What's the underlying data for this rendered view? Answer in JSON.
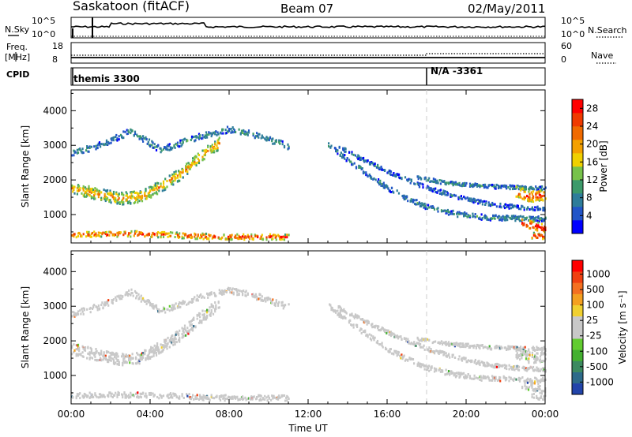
{
  "header": {
    "station": "Saskatoon (fitACF)",
    "beam": "Beam 07",
    "date": "02/May/2011"
  },
  "top_panels": {
    "nsky_label": "N.Sky",
    "nsky_ticks": [
      "10^5",
      "10^0"
    ],
    "nsearch_label": "N.Search",
    "nsearch_ticks": [
      "10^5",
      "10^0"
    ],
    "freq_label": "Freq.",
    "freq_unit": "[MHz]",
    "freq_ticks": [
      "18",
      "8"
    ],
    "nave_label": "Nave",
    "nave_ticks": [
      "60",
      "0"
    ],
    "cpid_label": "CPID",
    "cpid_segments": [
      {
        "label": "themis 3300",
        "start_hour": 0,
        "end_hour": 18
      },
      {
        "label": "N/A -3361",
        "start_hour": 18,
        "end_hour": 24
      }
    ]
  },
  "chart_data": [
    {
      "type": "heatmap",
      "name": "power",
      "x_range_hours": [
        0,
        24
      ],
      "x_ticks": [
        "00:00",
        "04:00",
        "08:00",
        "12:00",
        "16:00",
        "20:00",
        "00:00"
      ],
      "xlabel": "Time UT",
      "ylabel": "Slant Range [km]",
      "y_ticks": [
        1000,
        2000,
        3000,
        4000
      ],
      "ylim": [
        180,
        4600
      ],
      "colorbar_label": "Power [dB]",
      "colorbar_ticks": [
        "4",
        "8",
        "12",
        "16",
        "20",
        "24",
        "28"
      ],
      "colorbar_range": [
        0,
        30
      ],
      "colorbar_colors": [
        "#0000ff",
        "#2255c8",
        "#2e7d9a",
        "#3c9a6a",
        "#77c24a",
        "#f0d000",
        "#f4a000",
        "#f06a00",
        "#f03a00",
        "#ff0000"
      ],
      "echo_bands": [
        {
          "t": [
            0,
            1.5,
            3,
            4.5,
            6.5,
            8,
            9.5,
            11
          ],
          "range": [
            2750,
            3000,
            3400,
            2850,
            3250,
            3450,
            3250,
            2950
          ],
          "width": 90,
          "value": 8
        },
        {
          "t": [
            0,
            1.5,
            2.5,
            3.5,
            4.5,
            5.5,
            6.5,
            7.5
          ],
          "range": [
            1750,
            1550,
            1450,
            1500,
            1800,
            2150,
            2650,
            3050
          ],
          "width": 170,
          "value": 18
        },
        {
          "t": [
            0,
            1.5,
            3,
            4.5,
            6.5,
            8,
            10,
            11
          ],
          "range": [
            400,
            420,
            430,
            410,
            360,
            340,
            340,
            330
          ],
          "width": 80,
          "value": 24
        },
        {
          "t": [
            13,
            14,
            15,
            16,
            17,
            18,
            19.5,
            21,
            22.5,
            24
          ],
          "range": [
            3000,
            2550,
            2150,
            1750,
            1450,
            1200,
            1000,
            900,
            880,
            850
          ],
          "width": 75,
          "value": 8
        },
        {
          "t": [
            13.5,
            15,
            16.5,
            18,
            19.5,
            21,
            22.5,
            24
          ],
          "range": [
            2950,
            2500,
            2100,
            1750,
            1500,
            1300,
            1200,
            1150
          ],
          "width": 60,
          "value": 6
        },
        {
          "t": [
            17.5,
            19,
            20,
            21,
            22,
            23,
            24
          ],
          "range": [
            2050,
            1900,
            1850,
            1800,
            1780,
            1760,
            1750
          ],
          "width": 55,
          "value": 8
        },
        {
          "t": [
            22.5,
            23.2,
            24
          ],
          "range": [
            1650,
            1500,
            1550
          ],
          "width": 160,
          "value": 24
        },
        {
          "t": [
            22.8,
            23.5,
            24
          ],
          "range": [
            750,
            650,
            550
          ],
          "width": 130,
          "value": 27
        },
        {
          "t": [
            23.3,
            24
          ],
          "range": [
            380,
            350
          ],
          "width": 90,
          "value": 25
        }
      ]
    },
    {
      "type": "heatmap",
      "name": "velocity",
      "x_range_hours": [
        0,
        24
      ],
      "x_ticks": [
        "00:00",
        "04:00",
        "08:00",
        "12:00",
        "16:00",
        "20:00",
        "00:00"
      ],
      "xlabel": "Time UT",
      "ylabel": "Slant Range [km]",
      "y_ticks": [
        1000,
        2000,
        3000,
        4000
      ],
      "ylim": [
        180,
        4600
      ],
      "colorbar_label": "Velocity [m s⁻¹]",
      "colorbar_ticks": [
        "1000",
        "500",
        "100",
        "25",
        "-25",
        "-100",
        "-500",
        "-1000"
      ],
      "colorbar_range": [
        -1200,
        1200
      ],
      "colorbar_colors": [
        "#2244aa",
        "#2e6b8a",
        "#3c8a60",
        "#43b030",
        "#62cc30",
        "#c8c8c8",
        "#c8c8c8",
        "#f0d030",
        "#f4a020",
        "#f47020",
        "#f04010",
        "#ff0000"
      ],
      "echo_bands": [
        {
          "t": [
            0,
            1.5,
            3,
            4.5,
            6.5,
            8,
            9.5,
            11
          ],
          "range": [
            2750,
            3000,
            3400,
            2850,
            3250,
            3450,
            3250,
            2950
          ],
          "width": 90,
          "value": 0
        },
        {
          "t": [
            0,
            1.5,
            2.5,
            3.5,
            4.5,
            5.5,
            6.5,
            7.5
          ],
          "range": [
            1750,
            1550,
            1450,
            1500,
            1800,
            2150,
            2650,
            3050
          ],
          "width": 170,
          "value": 0
        },
        {
          "t": [
            0,
            1.5,
            3,
            4.5,
            6.5,
            8,
            10,
            11
          ],
          "range": [
            400,
            420,
            430,
            410,
            360,
            340,
            340,
            330
          ],
          "width": 80,
          "value": 60
        },
        {
          "t": [
            13,
            14,
            15,
            16,
            17,
            18,
            19.5,
            21,
            22.5,
            24
          ],
          "range": [
            3000,
            2550,
            2150,
            1750,
            1450,
            1200,
            1000,
            900,
            880,
            850
          ],
          "width": 75,
          "value": 0
        },
        {
          "t": [
            13.5,
            15,
            16.5,
            18,
            19.5,
            21,
            22.5,
            24
          ],
          "range": [
            2950,
            2500,
            2100,
            1750,
            1500,
            1300,
            1200,
            1150
          ],
          "width": 60,
          "value": 0
        },
        {
          "t": [
            17.5,
            19,
            20,
            21,
            22,
            23,
            24
          ],
          "range": [
            2050,
            1900,
            1850,
            1800,
            1780,
            1760,
            1750
          ],
          "width": 55,
          "value": 0
        },
        {
          "t": [
            22.5,
            23.2,
            24
          ],
          "range": [
            1650,
            1500,
            1550
          ],
          "width": 160,
          "value": 0
        },
        {
          "t": [
            22.8,
            23.5,
            24
          ],
          "range": [
            750,
            650,
            550
          ],
          "width": 130,
          "value": 60
        },
        {
          "t": [
            23.3,
            24
          ],
          "range": [
            380,
            350
          ],
          "width": 90,
          "value": 0
        }
      ]
    }
  ]
}
